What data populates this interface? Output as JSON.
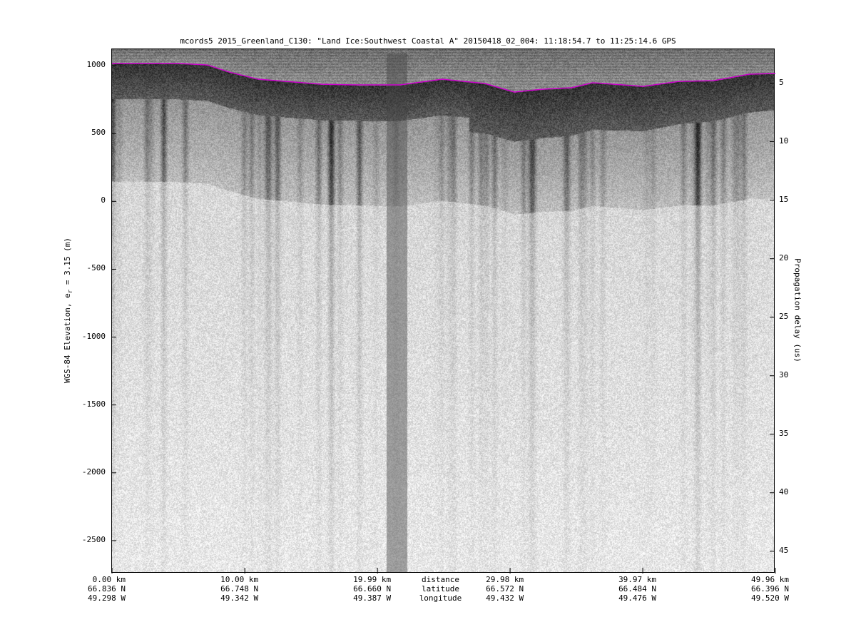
{
  "chart_data": {
    "type": "heatmap",
    "title": "mcords5 2015_Greenland_C130: \"Land Ice:Southwest Coastal A\"  20150418_02_004: 11:18:54.7 to 11:25:14.6 GPS",
    "ylabel_prefix": "WGS-84 Elevation, e",
    "ylabel_sub": "r",
    "ylabel_suffix": " = 3.15 (m)",
    "y2label": "Propagation delay (us)",
    "colormap": "grayscale",
    "ylim": [
      -2742,
      1121
    ],
    "y2lim": [
      2.1,
      46.9
    ],
    "xlim_km": [
      0,
      49.96
    ],
    "yticks": [
      "1000",
      "500",
      "0",
      "-500",
      "-1000",
      "-1500",
      "-2000",
      "-2500"
    ],
    "y2ticks": [
      "5",
      "10",
      "15",
      "20",
      "25",
      "30",
      "35",
      "40",
      "45"
    ],
    "x_row_labels": [
      "distance",
      "latitude",
      "longitude"
    ],
    "xticks": [
      {
        "distance": "0.00 km",
        "latitude": "66.836 N",
        "longitude": "49.298 W"
      },
      {
        "distance": "10.00 km",
        "latitude": "66.748 N",
        "longitude": "49.342 W"
      },
      {
        "distance": "19.99 km",
        "latitude": "66.660 N",
        "longitude": "49.387 W"
      },
      {
        "distance": "29.98 km",
        "latitude": "66.572 N",
        "longitude": "49.432 W"
      },
      {
        "distance": "39.97 km",
        "latitude": "66.484 N",
        "longitude": "49.476 W"
      },
      {
        "distance": "49.96 km",
        "latitude": "66.396 N",
        "longitude": "49.520 W"
      }
    ],
    "surface_line": {
      "color": "#cc00cc",
      "distance_km": [
        0,
        5.05,
        7.2,
        8.8,
        11.0,
        13.1,
        15.8,
        18.5,
        21.7,
        24.9,
        28.1,
        30.3,
        32.4,
        34.6,
        36.2,
        37.8,
        40.0,
        42.7,
        45.3,
        48.0,
        49.96
      ],
      "elevation_m": [
        1016,
        1016,
        1005,
        953,
        900,
        884,
        863,
        858,
        858,
        900,
        868,
        805,
        826,
        837,
        874,
        863,
        847,
        884,
        889,
        937,
        942
      ]
    }
  }
}
